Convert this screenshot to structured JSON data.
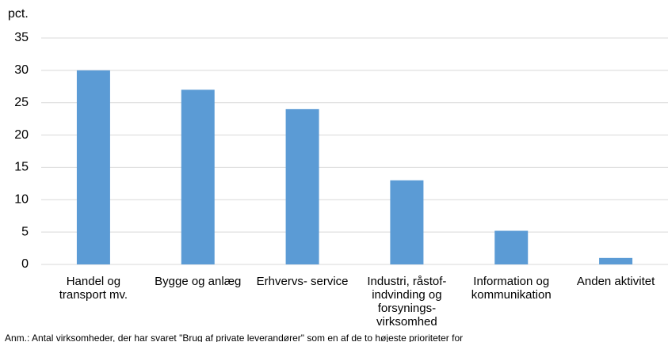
{
  "chart_data": {
    "type": "bar",
    "y_label": "pct.",
    "categories": [
      "Handel og transport mv.",
      "Bygge og anlæg",
      "Erhvervs- service",
      "Industri, råstof- indvinding og forsynings- virksomhed",
      "Information og kommunikation",
      "Anden aktivitet"
    ],
    "values": [
      30,
      27,
      24,
      13,
      5.2,
      1
    ],
    "color": "#5b9bd5",
    "ylim": [
      0,
      35
    ],
    "yticks": [
      0,
      5,
      10,
      15,
      20,
      25,
      30,
      35
    ],
    "grid": true,
    "note": "Anm.: Antal virksomheder, der har svaret \"Brug af private leverandører\" som en af de to højeste prioriteter for"
  }
}
